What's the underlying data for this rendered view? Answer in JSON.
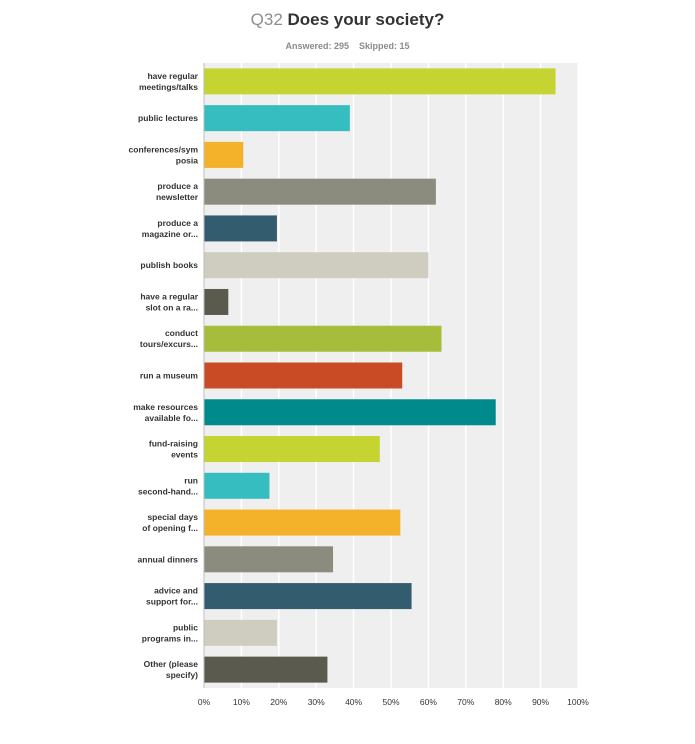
{
  "header": {
    "question_number": "Q32",
    "question_text": "Does your society?",
    "answered_label": "Answered: 295",
    "skipped_label": "Skipped: 15"
  },
  "chart_data": {
    "type": "bar",
    "orientation": "horizontal",
    "title": "Q32 Does your society?",
    "categories": [
      [
        "have regular",
        "meetings/talks"
      ],
      [
        "public lectures"
      ],
      [
        "conferences/sym",
        "posia"
      ],
      [
        "produce a",
        "newsletter"
      ],
      [
        "produce a",
        "magazine or..."
      ],
      [
        "publish books"
      ],
      [
        "have a regular",
        "slot on a ra..."
      ],
      [
        "conduct",
        "tours/excurs..."
      ],
      [
        "run a museum"
      ],
      [
        "make resources",
        "available fo..."
      ],
      [
        "fund-raising",
        "events"
      ],
      [
        "run",
        "second-hand..."
      ],
      [
        "special days",
        "of opening f..."
      ],
      [
        "annual dinners"
      ],
      [
        "advice and",
        "support for..."
      ],
      [
        "public",
        "programs in..."
      ],
      [
        "Other (please",
        "specify)"
      ]
    ],
    "values": [
      94,
      39,
      10.5,
      62,
      19.5,
      60,
      6.5,
      63.5,
      53,
      78,
      47,
      17.5,
      52.5,
      34.5,
      55.5,
      19.5,
      33
    ],
    "colors": [
      "#c5d430",
      "#36bdbf",
      "#f3b22a",
      "#8b8c7e",
      "#335c6e",
      "#cfcdc0",
      "#5a5b4e",
      "#a5bd3a",
      "#c84b25",
      "#018a8c",
      "#c5d430",
      "#36bdbf",
      "#f3b22a",
      "#8b8c7e",
      "#335c6e",
      "#cfcdc0",
      "#5a5b4e"
    ],
    "xlim": [
      0,
      100
    ],
    "xticks": [
      "0%",
      "10%",
      "20%",
      "30%",
      "40%",
      "50%",
      "60%",
      "70%",
      "80%",
      "90%",
      "100%"
    ],
    "grid": true,
    "background": "#efefef"
  }
}
